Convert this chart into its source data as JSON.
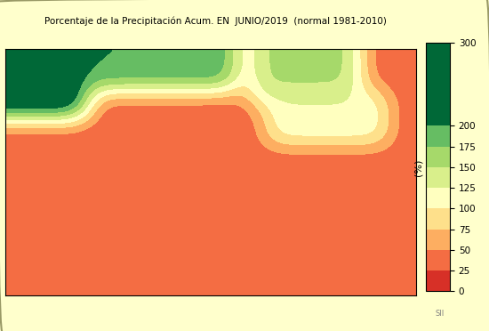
{
  "title": "Porcentaje de la Precipitación Acum. EN  JUNIO/2019  (normal 1981-2010)",
  "colorbar_label": "(%)",
  "colorbar_levels": [
    0,
    25,
    50,
    75,
    100,
    125,
    150,
    175,
    200,
    300
  ],
  "colorbar_colors": [
    "#d73027",
    "#f46d43",
    "#fdae61",
    "#fee08b",
    "#ffffbf",
    "#d9ef8b",
    "#a6d96a",
    "#66bd63",
    "#1a9850",
    "#006837"
  ],
  "background_color": "#aad3df",
  "panel_color": "#ffffcc",
  "map_background": "#aad3df",
  "border_color": "#cccccc",
  "figsize": [
    5.5,
    3.72
  ],
  "dpi": 100,
  "watermark": "SII",
  "footnote": "SII"
}
